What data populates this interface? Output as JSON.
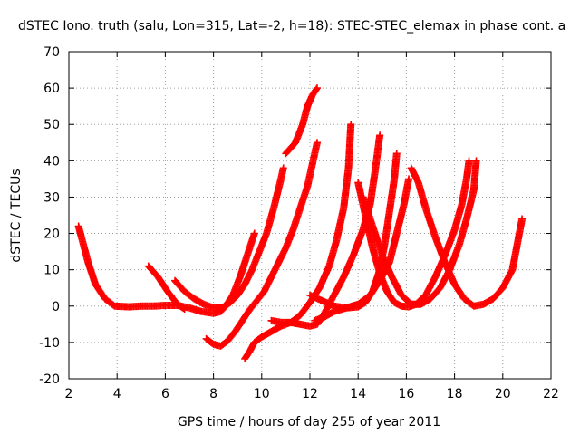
{
  "chart_data": {
    "type": "scatter",
    "title": "dSTEC Iono. truth (salu, Lon=315, Lat=-2, h=18): STEC-STEC_elemax in phase cont. a",
    "xlabel": "GPS time / hours of day 255 of year 2011",
    "ylabel": "dSTEC  / TECUs",
    "xlim": [
      2,
      22
    ],
    "ylim": [
      -20,
      70
    ],
    "xticks": [
      2,
      4,
      6,
      8,
      10,
      12,
      14,
      16,
      18,
      20,
      22
    ],
    "yticks": [
      -20,
      -10,
      0,
      10,
      20,
      30,
      40,
      50,
      60,
      70
    ],
    "grid": true,
    "marker": "+",
    "color": "#ff0000",
    "series": [
      {
        "points": [
          [
            2.4,
            22
          ],
          [
            2.6,
            17
          ],
          [
            2.8,
            12
          ],
          [
            3.1,
            6
          ],
          [
            3.5,
            2
          ],
          [
            3.9,
            0
          ],
          [
            4.5,
            -0.2
          ],
          [
            5.0,
            0
          ],
          [
            5.5,
            0
          ],
          [
            6.0,
            0.2
          ],
          [
            6.5,
            0.2
          ],
          [
            7.0,
            -0.5
          ],
          [
            7.5,
            -1.5
          ],
          [
            8.0,
            -2
          ],
          [
            8.3,
            -1.5
          ],
          [
            8.5,
            0
          ],
          [
            8.8,
            3
          ],
          [
            9.1,
            8
          ],
          [
            9.4,
            14
          ],
          [
            9.7,
            20
          ]
        ]
      },
      {
        "points": [
          [
            5.3,
            11
          ],
          [
            5.7,
            8
          ],
          [
            6.1,
            4
          ],
          [
            6.5,
            0.5
          ],
          [
            6.8,
            -0.8
          ]
        ]
      },
      {
        "points": [
          [
            6.4,
            7
          ],
          [
            6.8,
            4
          ],
          [
            7.2,
            2
          ],
          [
            7.6,
            0.5
          ],
          [
            8.0,
            -0.5
          ],
          [
            8.4,
            -0.3
          ],
          [
            8.7,
            1
          ],
          [
            9.0,
            3
          ],
          [
            9.3,
            6
          ],
          [
            9.6,
            10
          ],
          [
            9.9,
            15
          ],
          [
            10.2,
            20
          ],
          [
            10.5,
            27
          ],
          [
            10.8,
            35
          ],
          [
            10.9,
            38
          ]
        ]
      },
      {
        "points": [
          [
            7.7,
            -9
          ],
          [
            8.0,
            -10.5
          ],
          [
            8.3,
            -11
          ],
          [
            8.6,
            -9.5
          ],
          [
            8.9,
            -7
          ],
          [
            9.2,
            -4
          ],
          [
            9.5,
            -1
          ],
          [
            9.8,
            1.5
          ],
          [
            10.1,
            4
          ],
          [
            10.4,
            8
          ],
          [
            10.7,
            12
          ],
          [
            11.0,
            16
          ],
          [
            11.3,
            21
          ],
          [
            11.6,
            27
          ],
          [
            11.9,
            33
          ],
          [
            12.1,
            39
          ],
          [
            12.3,
            45
          ]
        ]
      },
      {
        "points": [
          [
            9.3,
            -14.5
          ],
          [
            9.5,
            -12.5
          ],
          [
            9.7,
            -10
          ],
          [
            10.0,
            -8.5
          ],
          [
            10.4,
            -7
          ],
          [
            10.8,
            -5.5
          ],
          [
            11.2,
            -4.5
          ],
          [
            11.6,
            -2.5
          ],
          [
            12.0,
            1
          ],
          [
            12.4,
            5
          ],
          [
            12.8,
            11
          ],
          [
            13.1,
            18
          ],
          [
            13.4,
            27
          ],
          [
            13.6,
            38
          ],
          [
            13.7,
            50
          ]
        ]
      },
      {
        "points": [
          [
            10.4,
            -4
          ],
          [
            10.8,
            -4.5
          ],
          [
            11.2,
            -4.5
          ],
          [
            11.6,
            -5
          ],
          [
            12.0,
            -5.5
          ],
          [
            12.3,
            -5
          ],
          [
            12.6,
            -2
          ],
          [
            13.0,
            3
          ],
          [
            13.4,
            8
          ],
          [
            13.8,
            14
          ],
          [
            14.2,
            21
          ],
          [
            14.5,
            28
          ],
          [
            14.7,
            37
          ],
          [
            14.9,
            47
          ]
        ]
      },
      {
        "points": [
          [
            11.0,
            42
          ],
          [
            11.4,
            45
          ],
          [
            11.7,
            50
          ],
          [
            11.9,
            55
          ],
          [
            12.1,
            58
          ],
          [
            12.3,
            60
          ]
        ]
      },
      {
        "points": [
          [
            12.0,
            3
          ],
          [
            12.5,
            1.5
          ],
          [
            13.0,
            0
          ],
          [
            13.5,
            -0.5
          ],
          [
            14.0,
            -0.2
          ],
          [
            14.3,
            1
          ],
          [
            14.6,
            4
          ],
          [
            14.9,
            10
          ],
          [
            15.1,
            17
          ],
          [
            15.3,
            26
          ],
          [
            15.5,
            35
          ],
          [
            15.6,
            42
          ]
        ]
      },
      {
        "points": [
          [
            12.2,
            -4
          ],
          [
            12.6,
            -3
          ],
          [
            13.0,
            -1.5
          ],
          [
            13.5,
            -0.5
          ],
          [
            14.0,
            0.5
          ],
          [
            14.5,
            3
          ],
          [
            14.9,
            7
          ],
          [
            15.3,
            12
          ],
          [
            15.6,
            20
          ],
          [
            15.9,
            28
          ],
          [
            16.1,
            35
          ]
        ]
      },
      {
        "points": [
          [
            14.0,
            34
          ],
          [
            14.3,
            25
          ],
          [
            14.6,
            16
          ],
          [
            14.9,
            9
          ],
          [
            15.2,
            4
          ],
          [
            15.5,
            1
          ],
          [
            15.8,
            0
          ],
          [
            16.1,
            -0.2
          ],
          [
            16.4,
            0.5
          ],
          [
            16.8,
            3
          ],
          [
            17.2,
            8
          ],
          [
            17.6,
            14
          ],
          [
            18.0,
            21
          ],
          [
            18.3,
            28
          ],
          [
            18.5,
            35
          ],
          [
            18.6,
            40
          ]
        ]
      },
      {
        "points": [
          [
            14.2,
            30
          ],
          [
            14.6,
            22
          ],
          [
            15.0,
            14
          ],
          [
            15.4,
            8
          ],
          [
            15.8,
            3
          ],
          [
            16.2,
            0.5
          ],
          [
            16.6,
            0.5
          ],
          [
            17.0,
            2
          ],
          [
            17.4,
            5
          ],
          [
            17.8,
            10
          ],
          [
            18.2,
            17
          ],
          [
            18.5,
            24
          ],
          [
            18.8,
            32
          ],
          [
            18.9,
            40
          ]
        ]
      },
      {
        "points": [
          [
            16.2,
            38
          ],
          [
            16.5,
            34
          ],
          [
            16.8,
            27
          ],
          [
            17.2,
            19
          ],
          [
            17.6,
            12
          ],
          [
            18.0,
            6
          ],
          [
            18.4,
            2
          ],
          [
            18.8,
            0
          ],
          [
            19.2,
            0.5
          ],
          [
            19.6,
            2
          ],
          [
            20.0,
            5
          ],
          [
            20.4,
            10
          ],
          [
            20.6,
            17
          ],
          [
            20.8,
            24
          ]
        ]
      }
    ]
  }
}
